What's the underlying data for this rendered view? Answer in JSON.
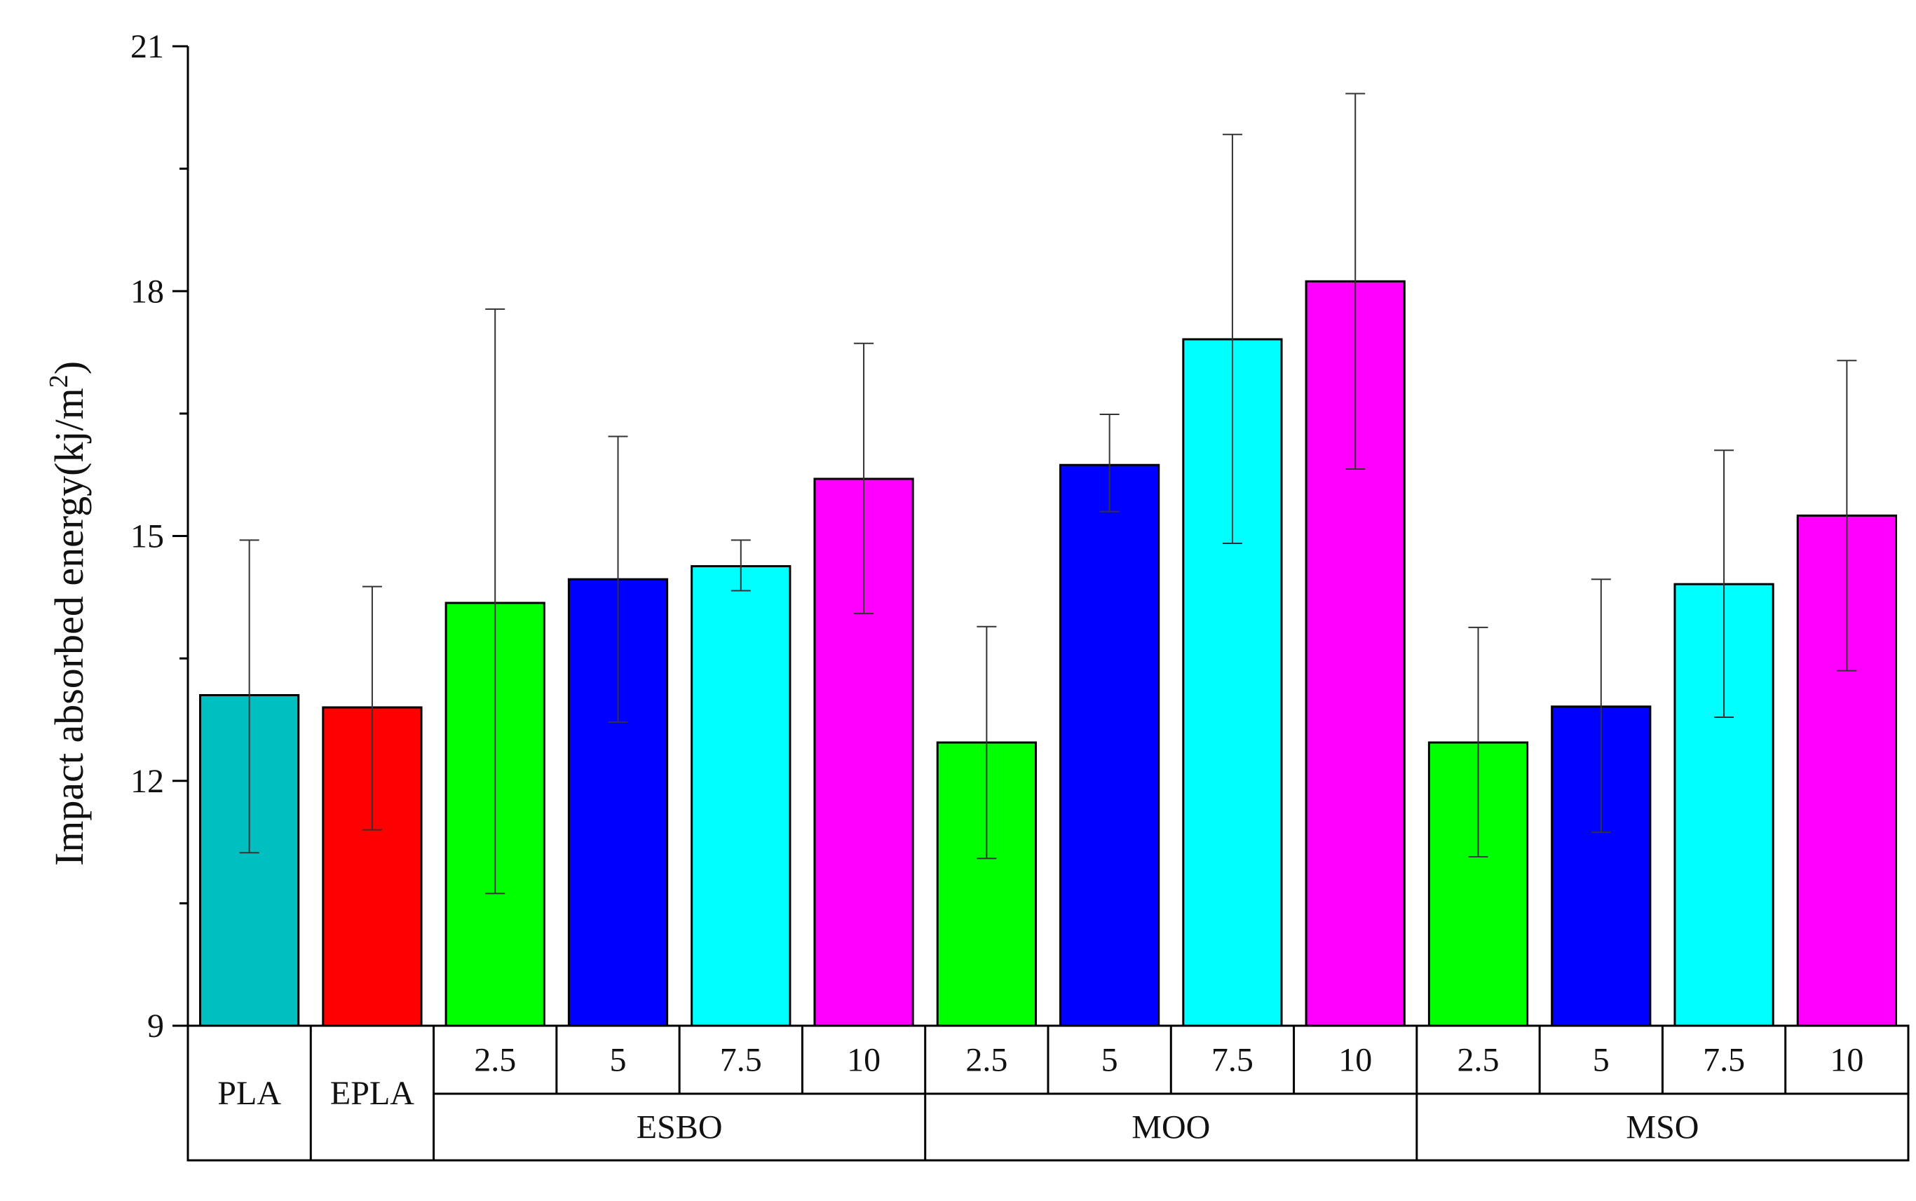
{
  "chart_data": {
    "type": "bar",
    "ylabel": "Impact absorbed energy(kj/m",
    "ylabel_sup": "2",
    "ylabel_close": ")",
    "ylim": [
      9,
      21
    ],
    "yticks": [
      9,
      12,
      15,
      18,
      21
    ],
    "grid": false,
    "categories": [
      {
        "label": "PLA",
        "group": "PLA",
        "value": 13.05,
        "error_low": 11.12,
        "error_high": 14.95,
        "color": "#00BFC0"
      },
      {
        "label": "EPLA",
        "group": "EPLA",
        "value": 12.9,
        "error_low": 11.4,
        "error_high": 14.38,
        "color": "#FF0000"
      },
      {
        "label": "2.5",
        "group": "ESBO",
        "value": 14.18,
        "error_low": 10.62,
        "error_high": 17.78,
        "color": "#00FF00"
      },
      {
        "label": "5",
        "group": "ESBO",
        "value": 14.47,
        "error_low": 12.72,
        "error_high": 16.22,
        "color": "#0000FF"
      },
      {
        "label": "7.5",
        "group": "ESBO",
        "value": 14.63,
        "error_low": 14.33,
        "error_high": 14.95,
        "color": "#00FFFF"
      },
      {
        "label": "10",
        "group": "ESBO",
        "value": 15.7,
        "error_low": 14.05,
        "error_high": 17.36,
        "color": "#FF00FF"
      },
      {
        "label": "2.5",
        "group": "MOO",
        "value": 12.47,
        "error_low": 11.05,
        "error_high": 13.89,
        "color": "#00FF00"
      },
      {
        "label": "5",
        "group": "MOO",
        "value": 15.87,
        "error_low": 15.3,
        "error_high": 16.49,
        "color": "#0000FF"
      },
      {
        "label": "7.5",
        "group": "MOO",
        "value": 17.41,
        "error_low": 14.91,
        "error_high": 19.92,
        "color": "#00FFFF"
      },
      {
        "label": "10",
        "group": "MOO",
        "value": 18.12,
        "error_low": 15.82,
        "error_high": 20.42,
        "color": "#FF00FF"
      },
      {
        "label": "2.5",
        "group": "MSO",
        "value": 12.47,
        "error_low": 11.07,
        "error_high": 13.88,
        "color": "#00FF00"
      },
      {
        "label": "5",
        "group": "MSO",
        "value": 12.91,
        "error_low": 11.37,
        "error_high": 14.47,
        "color": "#0000FF"
      },
      {
        "label": "7.5",
        "group": "MSO",
        "value": 14.41,
        "error_low": 12.78,
        "error_high": 16.05,
        "color": "#00FFFF"
      },
      {
        "label": "10",
        "group": "MSO",
        "value": 15.25,
        "error_low": 13.35,
        "error_high": 17.15,
        "color": "#FF00FF"
      }
    ],
    "groups": [
      {
        "name": "PLA",
        "span": 1,
        "spans_two_rows": true
      },
      {
        "name": "EPLA",
        "span": 1,
        "spans_two_rows": true
      },
      {
        "name": "ESBO",
        "span": 4,
        "spans_two_rows": false
      },
      {
        "name": "MOO",
        "span": 4,
        "spans_two_rows": false
      },
      {
        "name": "MSO",
        "span": 4,
        "spans_two_rows": false
      }
    ]
  }
}
